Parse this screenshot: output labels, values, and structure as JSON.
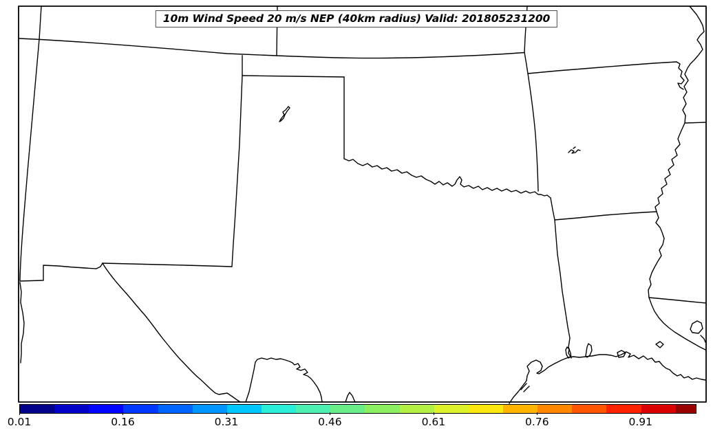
{
  "title": {
    "text": "10m Wind Speed 20 m/s NEP (40km radius) Valid: 201805231200"
  },
  "map": {
    "background_color": "#ffffff",
    "line_color": "#000000",
    "shaded_probability_regions": [],
    "visible_features": [
      "state-borders-south-central-us",
      "mexico-border",
      "rio-grande",
      "red-river",
      "mississippi-river",
      "gulf-coastline",
      "coastal-lakes"
    ]
  },
  "colorbar": {
    "ticks": [
      "0.01",
      "0.16",
      "0.31",
      "0.46",
      "0.61",
      "0.76",
      "0.91"
    ],
    "tick_values": [
      0.01,
      0.16,
      0.31,
      0.46,
      0.61,
      0.76,
      0.91
    ],
    "boundaries": [
      0.01,
      0.06,
      0.11,
      0.16,
      0.21,
      0.26,
      0.31,
      0.36,
      0.41,
      0.46,
      0.51,
      0.56,
      0.61,
      0.66,
      0.71,
      0.76,
      0.81,
      0.86,
      0.91,
      0.96,
      0.989
    ],
    "colors": [
      "#00008b",
      "#0000c8",
      "#0004ff",
      "#0038ff",
      "#0064ff",
      "#0096ff",
      "#00c8ff",
      "#2aeed8",
      "#4df0b0",
      "#6aef88",
      "#8bef62",
      "#b2f046",
      "#dff32b",
      "#fde910",
      "#ffb400",
      "#ff8800",
      "#ff5500",
      "#ff2200",
      "#da0000",
      "#990000"
    ]
  },
  "chart_data": {
    "type": "map",
    "title": "10m Wind Speed 20 m/s NEP (40km radius) Valid: 201805231200",
    "valid_label": "201805231200",
    "legend_position": "bottom",
    "colorbar_range": [
      0.01,
      0.99
    ],
    "colorbar_tick_labels": [
      "0.01",
      "0.16",
      "0.31",
      "0.46",
      "0.61",
      "0.76",
      "0.91"
    ],
    "shaded_regions": []
  }
}
